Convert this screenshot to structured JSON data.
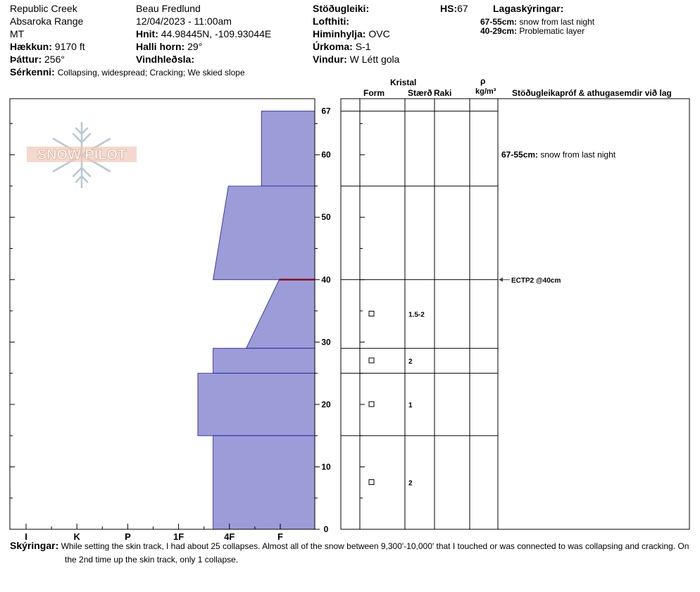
{
  "header": {
    "location": "Republic Creek",
    "range": "Absaroka Range",
    "state": "MT",
    "elevation_label": "Hækkun:",
    "elevation": "9170 ft",
    "aspect_label": "Þáttur:",
    "aspect": "256°",
    "features_label": "Sérkenni:",
    "features": "Collapsing, widespread;  Cracking;  We skied slope",
    "observer": "Beau  Fredlund",
    "datetime": "12/04/2023 - 11:00am",
    "coords_label": "Hnit:",
    "coords": "44.98445N, -109.93044E",
    "slope_label": "Halli horn:",
    "slope": "29°",
    "wind_loading_label": "Vindhleðsla:",
    "wind_loading": "",
    "stability_label": "Stöðugleiki:",
    "stability": "",
    "air_temp_label": "Lofthiti:",
    "air_temp": "",
    "sky_label": "Himinhylja:",
    "sky": "OVC",
    "precip_label": "Úrkoma:",
    "precip": "S-1",
    "wind_label": "Vindur:",
    "wind": "W Létt gola",
    "hs_label": "HS:",
    "hs": "67",
    "layer_notes_label": "Lagaskýringar:",
    "layer_notes": [
      {
        "range": "67-55cm:",
        "text": "snow from last night"
      },
      {
        "range": "40-29cm:",
        "text": "Problematic layer"
      }
    ]
  },
  "logo": {
    "text": "SNOW PILOT"
  },
  "columns": {
    "crystal": "Kristal",
    "form": "Form",
    "size": "Stærð",
    "moisture": "Raki",
    "density_symbol": "ρ",
    "density_unit": "kg/m³",
    "tests": "Stöðugleikapróf & athugasemdir við lag"
  },
  "comments": {
    "label": "Skýringar:",
    "line1": "While setting the skin track, I had about 25 collapses.  Almost all of the snow between 9,300'-10,000' that I touched or was connected to was collapsing and cracking.  On",
    "line2": "the 2nd time up the skin track, only 1 collapse."
  },
  "chart_data": {
    "type": "bar",
    "orientation": "horizontal",
    "description_type": "snow hardness profile",
    "y_unit": "cm",
    "ylim": [
      0,
      69
    ],
    "y_ticks": [
      0,
      10,
      20,
      30,
      40,
      50,
      60,
      67
    ],
    "hardness_scale": [
      "I",
      "K",
      "P",
      "1F",
      "4F",
      "F"
    ],
    "layers": [
      {
        "top": 67,
        "bottom": 55,
        "hardness_top": 1.05,
        "hardness_bottom": 1.05
      },
      {
        "top": 55,
        "bottom": 40,
        "hardness_top": 1.7,
        "hardness_bottom": 2.0
      },
      {
        "top": 40,
        "bottom": 29,
        "hardness_top": 0.7,
        "hardness_bottom": 1.35
      },
      {
        "top": 29,
        "bottom": 25,
        "hardness_top": 2.0,
        "hardness_bottom": 2.0
      },
      {
        "top": 25,
        "bottom": 15,
        "hardness_top": 2.3,
        "hardness_bottom": 2.3
      },
      {
        "top": 15,
        "bottom": 0,
        "hardness_top": 2.0,
        "hardness_bottom": 2.0
      }
    ],
    "weak_layer_depth": 40,
    "grain_rows": [
      {
        "depth": 34.5,
        "form": "□",
        "size": "1.5-2"
      },
      {
        "depth": 27,
        "form": "□",
        "size": "2"
      },
      {
        "depth": 20,
        "form": "□",
        "size": "1"
      },
      {
        "depth": 7.5,
        "form": "□",
        "size": "2"
      }
    ],
    "layer_comments": [
      {
        "depth": 60,
        "range": "67-55cm:",
        "text": "snow from last night"
      }
    ],
    "tests": [
      {
        "depth": 40,
        "label": "ECTP2 @40cm"
      }
    ]
  }
}
